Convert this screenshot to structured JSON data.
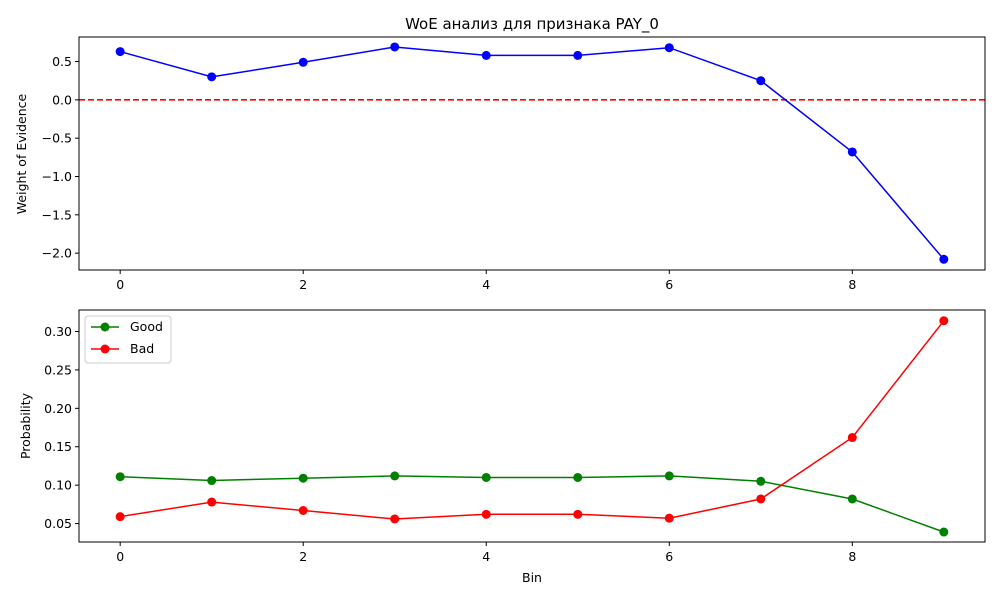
{
  "chart_data": [
    {
      "type": "line",
      "title": "WoE анализ для признака PAY_0",
      "xlabel": "",
      "ylabel": "Weight of Evidence",
      "xlim": [
        -0.45,
        9.45
      ],
      "ylim": [
        -2.22,
        0.82
      ],
      "xticks": [
        0,
        2,
        4,
        6,
        8
      ],
      "yticks": [
        0.5,
        0.0,
        -0.5,
        -1.0,
        -1.5,
        -2.0
      ],
      "ytick_labels": [
        "0.5",
        "0.0",
        "−0.5",
        "−1.0",
        "−1.5",
        "−2.0"
      ],
      "series": [
        {
          "color": "#0000ff",
          "marker": "circle",
          "x": [
            0,
            1,
            2,
            3,
            4,
            5,
            6,
            7,
            8,
            9
          ],
          "y": [
            0.63,
            0.3,
            0.49,
            0.69,
            0.58,
            0.58,
            0.68,
            0.25,
            -0.68,
            -2.08
          ]
        }
      ],
      "reference_lines": [
        {
          "y": 0,
          "style": "dashed",
          "color": "#ff0000"
        }
      ]
    },
    {
      "type": "line",
      "title": "",
      "xlabel": "Bin",
      "ylabel": "Probability",
      "xlim": [
        -0.45,
        9.45
      ],
      "ylim": [
        0.026,
        0.328
      ],
      "xticks": [
        0,
        2,
        4,
        6,
        8
      ],
      "yticks": [
        0.05,
        0.1,
        0.15,
        0.2,
        0.25,
        0.3
      ],
      "ytick_labels": [
        "0.05",
        "0.10",
        "0.15",
        "0.20",
        "0.25",
        "0.30"
      ],
      "legend": "top-left",
      "series": [
        {
          "name": "Good",
          "color": "#008000",
          "marker": "circle",
          "x": [
            0,
            1,
            2,
            3,
            4,
            5,
            6,
            7,
            8,
            9
          ],
          "y": [
            0.111,
            0.106,
            0.109,
            0.112,
            0.11,
            0.11,
            0.112,
            0.105,
            0.082,
            0.039
          ]
        },
        {
          "name": "Bad",
          "color": "#ff0000",
          "marker": "circle",
          "x": [
            0,
            1,
            2,
            3,
            4,
            5,
            6,
            7,
            8,
            9
          ],
          "y": [
            0.059,
            0.078,
            0.067,
            0.056,
            0.062,
            0.062,
            0.057,
            0.082,
            0.162,
            0.314
          ]
        }
      ]
    }
  ]
}
